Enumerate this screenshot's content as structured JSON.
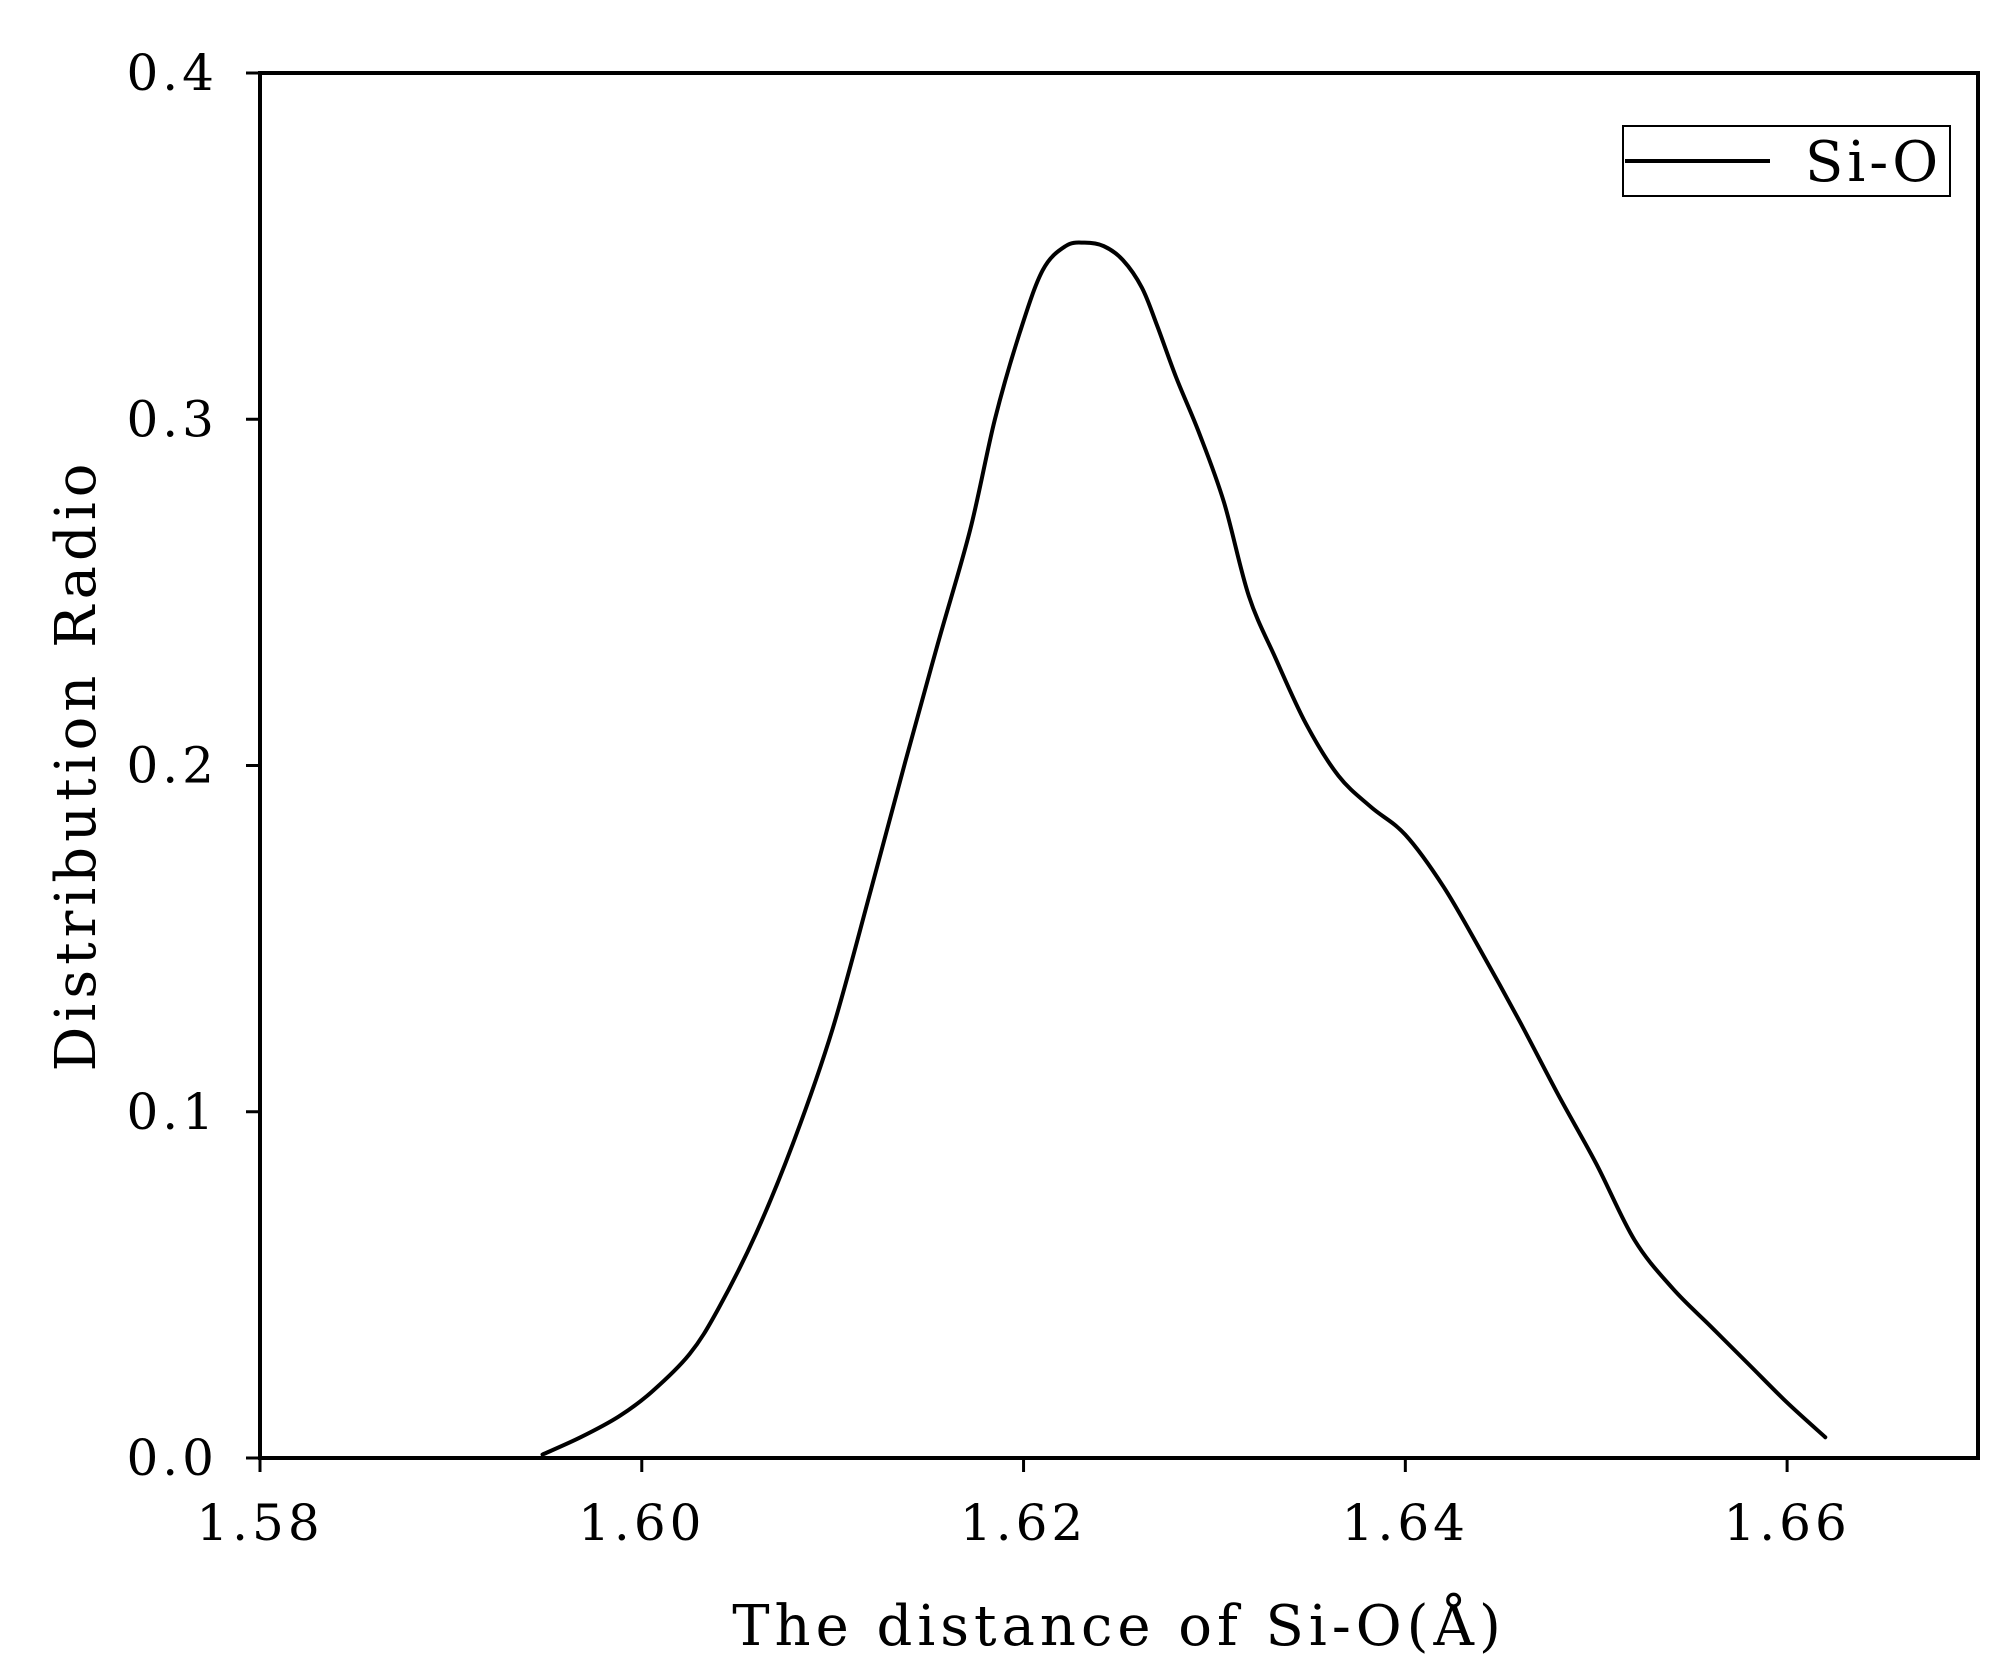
{
  "chart_data": {
    "type": "line",
    "title": "",
    "xlabel": "The distance of Si-O(Å)",
    "ylabel": "Distribution Radio",
    "xlim": [
      1.58,
      1.67
    ],
    "ylim": [
      0.0,
      0.4
    ],
    "x_ticks": [
      1.58,
      1.6,
      1.62,
      1.64,
      1.66
    ],
    "x_tick_labels": [
      "1.58",
      "1.60",
      "1.62",
      "1.64",
      "1.66"
    ],
    "y_ticks": [
      0.0,
      0.1,
      0.2,
      0.3,
      0.4
    ],
    "y_tick_labels": [
      "0.0",
      "0.1",
      "0.2",
      "0.3",
      "0.4"
    ],
    "grid": false,
    "legend_position": "top-right",
    "series": [
      {
        "name": "Si-O",
        "color": "#000000",
        "x": [
          1.5948,
          1.5968,
          1.5988,
          1.6005,
          1.6025,
          1.604,
          1.606,
          1.608,
          1.61,
          1.612,
          1.6138,
          1.6155,
          1.6172,
          1.6185,
          1.6198,
          1.621,
          1.6222,
          1.6232,
          1.6242,
          1.6252,
          1.6262,
          1.627,
          1.628,
          1.6292,
          1.6305,
          1.6318,
          1.6332,
          1.6348,
          1.6365,
          1.6382,
          1.64,
          1.642,
          1.644,
          1.646,
          1.648,
          1.65,
          1.652,
          1.654,
          1.656,
          1.658,
          1.66,
          1.662
        ],
        "y": [
          0.001,
          0.006,
          0.012,
          0.019,
          0.03,
          0.043,
          0.065,
          0.092,
          0.124,
          0.164,
          0.201,
          0.235,
          0.268,
          0.3,
          0.325,
          0.343,
          0.35,
          0.351,
          0.35,
          0.346,
          0.338,
          0.327,
          0.312,
          0.296,
          0.276,
          0.249,
          0.231,
          0.212,
          0.197,
          0.188,
          0.18,
          0.165,
          0.146,
          0.126,
          0.105,
          0.085,
          0.063,
          0.049,
          0.038,
          0.027,
          0.016,
          0.006
        ]
      }
    ]
  }
}
